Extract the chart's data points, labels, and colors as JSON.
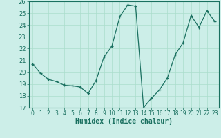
{
  "x": [
    0,
    1,
    2,
    3,
    4,
    5,
    6,
    7,
    8,
    9,
    10,
    11,
    12,
    13,
    14,
    15,
    16,
    17,
    18,
    19,
    20,
    21,
    22,
    23
  ],
  "y": [
    20.7,
    19.9,
    19.4,
    19.2,
    18.9,
    18.85,
    18.75,
    18.2,
    19.3,
    21.3,
    22.2,
    24.7,
    25.7,
    25.6,
    17.0,
    17.8,
    18.5,
    19.5,
    21.5,
    22.5,
    24.8,
    23.8,
    25.2,
    24.3
  ],
  "line_color": "#1a7060",
  "marker_color": "#1a7060",
  "bg_color": "#cceee8",
  "grid_color": "#aaddcc",
  "xlabel": "Humidex (Indice chaleur)",
  "xlim": [
    -0.5,
    23.5
  ],
  "ylim": [
    17,
    26
  ],
  "yticks": [
    17,
    18,
    19,
    20,
    21,
    22,
    23,
    24,
    25,
    26
  ],
  "xticks": [
    0,
    1,
    2,
    3,
    4,
    5,
    6,
    7,
    8,
    9,
    10,
    11,
    12,
    13,
    14,
    15,
    16,
    17,
    18,
    19,
    20,
    21,
    22,
    23
  ],
  "xlabel_fontsize": 7,
  "tick_fontsize": 5.5,
  "ytick_fontsize": 6
}
